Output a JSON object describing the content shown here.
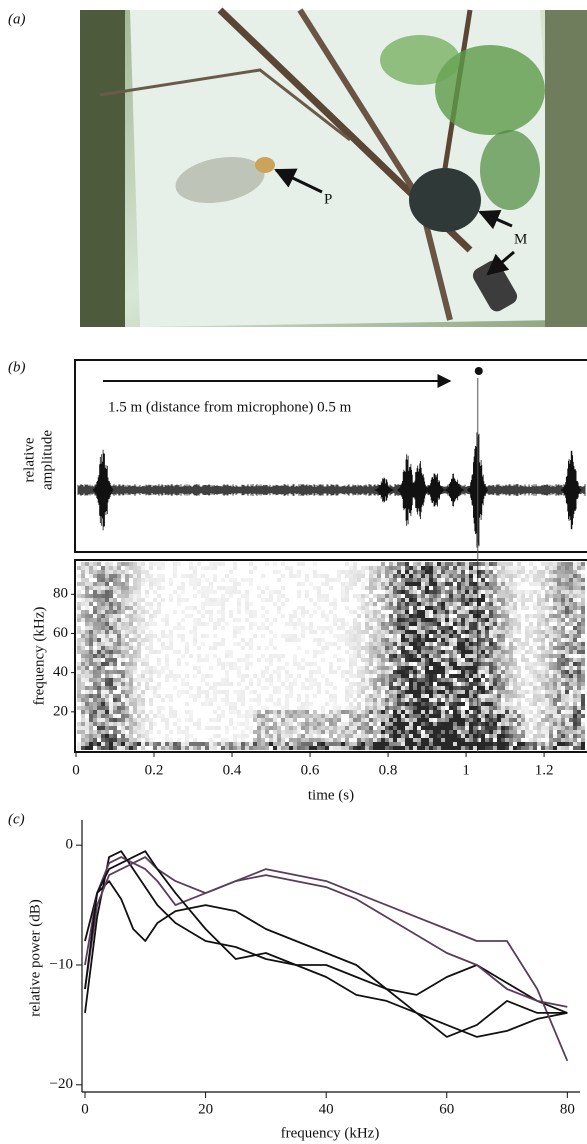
{
  "photo": {
    "panel_label": "(a)",
    "annotations": [
      "P",
      "M"
    ]
  },
  "chart_data": [
    {
      "type": "waveform",
      "panel_label": "(b)",
      "ylabel": [
        "relative",
        "amplitude"
      ],
      "annotation": "1.5 m (distance from microphone) 0.5 m",
      "xlim": [
        0,
        1.31
      ],
      "marker_time": 1.03,
      "bursts": {
        "times": [
          0.07,
          0.79,
          0.85,
          0.88,
          0.92,
          0.97,
          1.03,
          1.27
        ],
        "amplitudes": [
          0.55,
          0.15,
          0.45,
          0.35,
          0.25,
          0.2,
          0.7,
          0.55
        ]
      }
    },
    {
      "type": "spectrogram",
      "ylabel": "frequency (kHz)",
      "xlabel": "time (s)",
      "xlim": [
        0,
        1.31
      ],
      "ylim": [
        0,
        97
      ],
      "xticks": [
        0,
        0.2,
        0.4,
        0.6,
        0.8,
        1.0,
        1.2
      ],
      "yticks": [
        20,
        40,
        60,
        80
      ]
    },
    {
      "type": "line",
      "panel_label": "(c)",
      "xlabel": "frequency (kHz)",
      "ylabel": "relative power (dB)",
      "xlim": [
        -0.5,
        82.1
      ],
      "ylim": [
        -20.6,
        2.1
      ],
      "xticks": [
        0,
        20,
        40,
        60,
        80
      ],
      "yticks": [
        0,
        {
          "value": -10,
          "label": "−10"
        },
        {
          "value": -20,
          "label": "−20"
        }
      ],
      "x": [
        0,
        2,
        4,
        6,
        8,
        10,
        12,
        15,
        20,
        25,
        30,
        35,
        40,
        45,
        50,
        55,
        60,
        65,
        70,
        75,
        80
      ],
      "series": [
        {
          "color": "#111111",
          "values": [
            -14,
            -6,
            -1,
            -0.5,
            -2,
            -3.5,
            -5,
            -6.5,
            -8,
            -8.5,
            -9.5,
            -10,
            -11,
            -12.5,
            -13,
            -14,
            -15,
            -16,
            -15.5,
            -14.5,
            -14
          ]
        },
        {
          "color": "#111111",
          "values": [
            -8,
            -4,
            -3,
            -4.5,
            -7,
            -8,
            -6.5,
            -5.5,
            -5,
            -5.5,
            -7,
            -8,
            -9,
            -10,
            -12,
            -12.5,
            -11,
            -10,
            -11.5,
            -13,
            -14
          ]
        },
        {
          "color": "#5a3d5c",
          "values": [
            -12,
            -5,
            -2.5,
            -2,
            -1.5,
            -1,
            -2,
            -3,
            -4,
            -3,
            -2,
            -2.5,
            -3,
            -4,
            -5,
            -6,
            -7,
            -8,
            -8,
            -12,
            -18
          ]
        },
        {
          "color": "#5a3d5c",
          "values": [
            -10,
            -4,
            -1.5,
            -1,
            -1.5,
            -2,
            -3,
            -5,
            -4,
            -3,
            -2.5,
            -3,
            -3.5,
            -4.5,
            -6,
            -7.5,
            -9,
            -10,
            -12,
            -13,
            -13.5
          ]
        },
        {
          "color": "#111111",
          "values": [
            -12,
            -4,
            -2,
            -1.5,
            -1,
            -0.5,
            -2,
            -4,
            -7,
            -9.5,
            -9,
            -10,
            -10,
            -11,
            -12,
            -14,
            -16,
            -15,
            -13,
            -14,
            -14
          ]
        }
      ]
    }
  ]
}
